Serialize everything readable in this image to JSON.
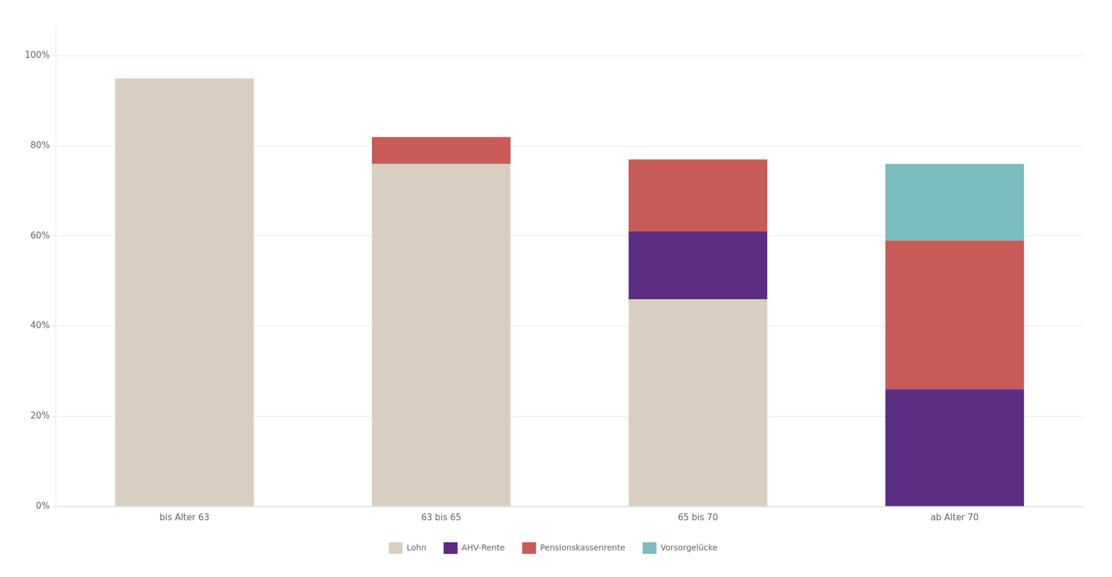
{
  "chart_data": {
    "type": "bar",
    "stacked": true,
    "categories": [
      "bis Alter 63",
      "63 bis 65",
      "65 bis 70",
      "ab Alter 70"
    ],
    "series": [
      {
        "name": "Lohn",
        "color": "#d9cfc1",
        "values": [
          95,
          76,
          46,
          0
        ]
      },
      {
        "name": "AHV-Rente",
        "color": "#5b2c82",
        "values": [
          0,
          0,
          15,
          26
        ]
      },
      {
        "name": "Pensionskassenrente",
        "color": "#c85b57",
        "values": [
          0,
          6,
          16,
          33
        ]
      },
      {
        "name": "Vorsorgelücke",
        "color": "#7bbcbe",
        "values": [
          0,
          0,
          0,
          17
        ]
      }
    ],
    "ylim": [
      0,
      107
    ],
    "yticks": [
      {
        "value": 0,
        "label": "0%"
      },
      {
        "value": 20,
        "label": "20%"
      },
      {
        "value": 40,
        "label": "40%"
      },
      {
        "value": 60,
        "label": "60%"
      },
      {
        "value": 80,
        "label": "80%"
      },
      {
        "value": 100,
        "label": "100%"
      }
    ],
    "grid": true,
    "legend": "bottom"
  }
}
